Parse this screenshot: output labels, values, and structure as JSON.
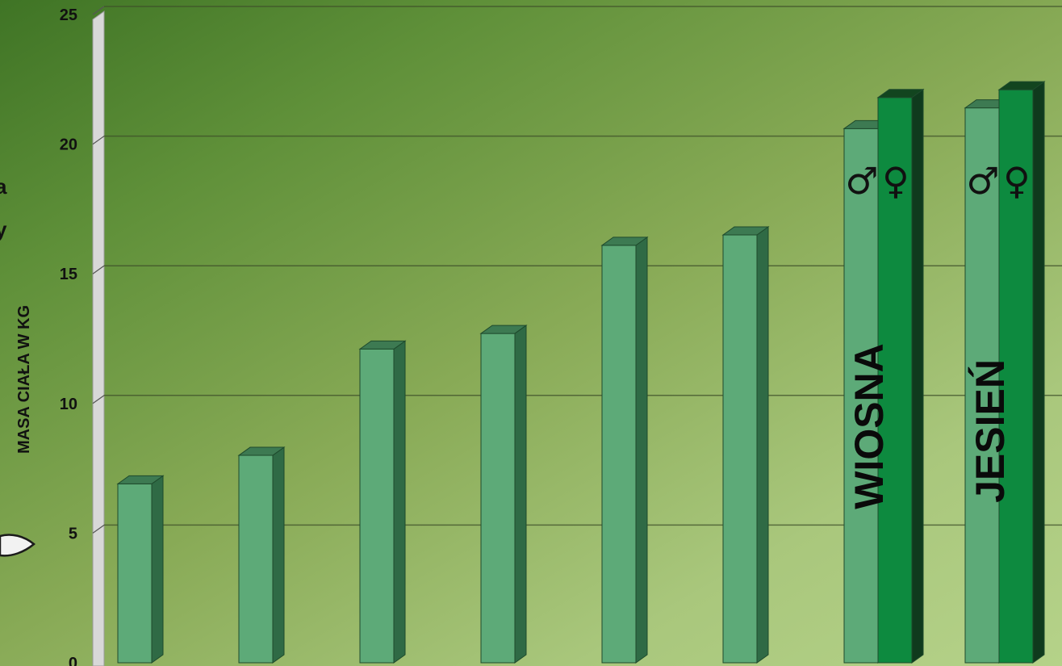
{
  "chart_data": {
    "type": "bar",
    "title": "",
    "ylabel": "MASA CIAŁA W KG",
    "xlabel": "",
    "ylim": [
      0,
      25
    ],
    "yticks": [
      "0",
      "5",
      "10",
      "15",
      "20",
      "25"
    ],
    "grid": true,
    "categories": [
      "",
      "",
      "",
      "",
      "",
      "",
      "WIOSNA",
      "JESIEŃ"
    ],
    "series": [
      {
        "name": "♂",
        "values": [
          6.9,
          8.0,
          12.1,
          12.7,
          16.1,
          16.5,
          20.6,
          21.4
        ],
        "color": "#5daa78"
      },
      {
        "name": "♀",
        "values": [
          null,
          null,
          null,
          null,
          null,
          null,
          21.8,
          22.1
        ],
        "color": "#0d8a3f"
      }
    ],
    "group_labels": [
      {
        "male_symbol": "♂",
        "female_symbol": "♀",
        "label": "WIOSNA"
      },
      {
        "male_symbol": "♂",
        "female_symbol": "♀",
        "label": "JESIEŃ"
      }
    ],
    "edge_fragments": [
      "a",
      "y"
    ]
  }
}
